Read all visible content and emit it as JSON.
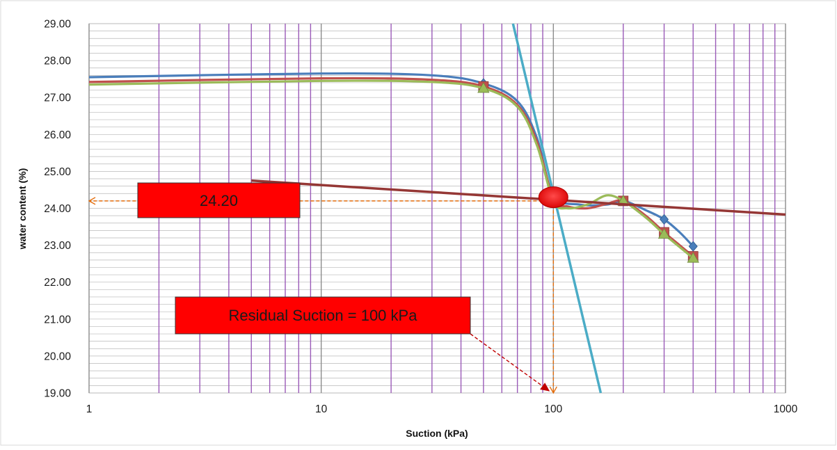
{
  "chart_data": {
    "type": "line",
    "title": "",
    "xlabel": "Suction (kPa)",
    "ylabel": "water content (%)",
    "x_scale": "log",
    "xlim": [
      1,
      1000
    ],
    "ylim": [
      19,
      29
    ],
    "x_ticks": [
      "1",
      "10",
      "100",
      "1000"
    ],
    "y_ticks": [
      "19.00",
      "20.00",
      "21.00",
      "22.00",
      "23.00",
      "24.00",
      "25.00",
      "26.00",
      "27.00",
      "28.00",
      "29.00"
    ],
    "grid": true,
    "legend": "none",
    "series": [
      {
        "color": "#4a7ebb",
        "marker": "diamond",
        "x": [
          50,
          100,
          200,
          300,
          400
        ],
        "y": [
          27.38,
          24.35,
          24.2,
          23.7,
          22.97
        ],
        "curve_x": [
          1,
          10,
          30,
          50,
          70,
          85,
          100,
          130,
          170,
          200,
          250,
          300,
          350,
          400
        ],
        "curve_y": [
          27.55,
          27.65,
          27.6,
          27.38,
          26.9,
          25.9,
          24.35,
          24.1,
          24.1,
          24.2,
          23.95,
          23.7,
          23.35,
          22.97
        ]
      },
      {
        "color": "#c0504d",
        "marker": "square",
        "x": [
          50,
          100,
          200,
          300,
          400
        ],
        "y": [
          27.3,
          24.25,
          24.2,
          23.35,
          22.7
        ],
        "curve_x": [
          1,
          10,
          30,
          50,
          70,
          85,
          100,
          115,
          140,
          170,
          200,
          250,
          300,
          350,
          400
        ],
        "curve_y": [
          27.42,
          27.52,
          27.48,
          27.3,
          26.8,
          25.8,
          24.25,
          24.05,
          24.0,
          24.12,
          24.2,
          23.8,
          23.35,
          23.0,
          22.7
        ]
      },
      {
        "color": "#9bbb59",
        "marker": "triangle",
        "x": [
          50,
          100,
          200,
          300,
          400
        ],
        "y": [
          27.25,
          24.2,
          24.2,
          23.3,
          22.65
        ],
        "curve_x": [
          1,
          10,
          30,
          50,
          70,
          85,
          100,
          115,
          140,
          170,
          200,
          250,
          300,
          350,
          400
        ],
        "curve_y": [
          27.35,
          27.45,
          27.42,
          27.25,
          26.75,
          25.7,
          24.2,
          24.0,
          24.1,
          24.35,
          24.2,
          23.75,
          23.3,
          22.95,
          22.65
        ]
      }
    ],
    "tangent_lines": [
      {
        "color": "#4bacc6",
        "x": [
          67,
          160
        ],
        "y": [
          29.0,
          19.0
        ]
      },
      {
        "color": "#953735",
        "x": [
          5,
          1000
        ],
        "y": [
          24.75,
          23.83
        ]
      }
    ],
    "intersection": {
      "x": 100,
      "y": 24.3,
      "color": "#ff0000"
    },
    "guides": [
      {
        "color": "#e46c0a",
        "from": [
          100,
          24.2
        ],
        "to": [
          1,
          24.2
        ]
      },
      {
        "color": "#e46c0a",
        "from": [
          100,
          24.1
        ],
        "to": [
          100,
          19.0
        ]
      }
    ],
    "annotations": [
      {
        "text": "24.20",
        "color": "#ff0000"
      },
      {
        "text": "Residual Suction = 100 kPa",
        "color": "#ff0000",
        "arrow_to": [
          100,
          19.0
        ],
        "arrow_color": "#c00000"
      }
    ]
  }
}
